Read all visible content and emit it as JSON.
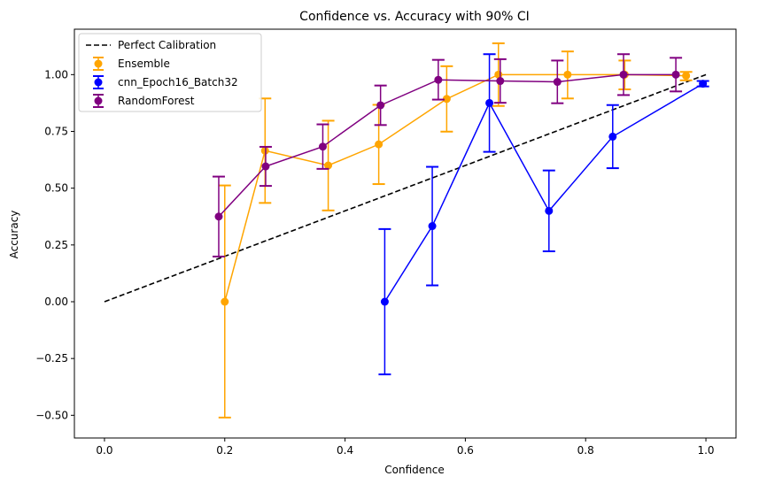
{
  "chart_data": {
    "type": "line",
    "title": "Confidence vs. Accuracy with 90% CI",
    "xlabel": "Confidence",
    "ylabel": "Accuracy",
    "xlim": [
      -0.05,
      1.05
    ],
    "ylim": [
      -0.6,
      1.2
    ],
    "x_ticks": [
      0.0,
      0.2,
      0.4,
      0.6,
      0.8,
      1.0
    ],
    "x_tick_labels": [
      "0.0",
      "0.2",
      "0.4",
      "0.6",
      "0.8",
      "1.0"
    ],
    "y_ticks": [
      -0.5,
      -0.25,
      0.0,
      0.25,
      0.5,
      0.75,
      1.0
    ],
    "y_tick_labels": [
      "−0.50",
      "−0.25",
      "0.00",
      "0.25",
      "0.50",
      "0.75",
      "1.00"
    ],
    "grid": false,
    "legend_position": "top-left",
    "reference_line": {
      "name": "Perfect Calibration",
      "x": [
        0.0,
        1.0
      ],
      "y": [
        0.0,
        1.0
      ],
      "color": "#000000",
      "style": "dashed"
    },
    "series": [
      {
        "name": "Ensemble",
        "color": "#ffa500",
        "x": [
          0.2,
          0.267,
          0.372,
          0.456,
          0.569,
          0.655,
          0.77,
          0.865,
          0.967
        ],
        "y": [
          0.0,
          0.665,
          0.6,
          0.693,
          0.893,
          1.0,
          1.0,
          1.0,
          0.995
        ],
        "err_low": [
          -0.51,
          0.435,
          0.402,
          0.518,
          0.749,
          0.862,
          0.895,
          0.935,
          0.975
        ],
        "err_high": [
          0.512,
          0.895,
          0.797,
          0.867,
          1.037,
          1.138,
          1.102,
          1.062,
          1.012
        ]
      },
      {
        "name": "cnn_Epoch16_Batch32",
        "color": "#0000ff",
        "x": [
          0.466,
          0.545,
          0.64,
          0.739,
          0.845,
          0.995
        ],
        "y": [
          0.0,
          0.333,
          0.875,
          0.4,
          0.727,
          0.96
        ],
        "err_low": [
          -0.32,
          0.072,
          0.66,
          0.222,
          0.588,
          0.948
        ],
        "err_high": [
          0.32,
          0.594,
          1.09,
          0.578,
          0.866,
          0.972
        ]
      },
      {
        "name": "RandomForest",
        "color": "#800080",
        "x": [
          0.19,
          0.268,
          0.363,
          0.459,
          0.555,
          0.658,
          0.753,
          0.863,
          0.95
        ],
        "y": [
          0.375,
          0.596,
          0.683,
          0.865,
          0.977,
          0.972,
          0.968,
          1.0,
          1.0
        ],
        "err_low": [
          0.199,
          0.51,
          0.585,
          0.778,
          0.89,
          0.876,
          0.874,
          0.91,
          0.926
        ],
        "err_high": [
          0.551,
          0.682,
          0.781,
          0.952,
          1.065,
          1.068,
          1.062,
          1.09,
          1.074
        ]
      }
    ]
  }
}
